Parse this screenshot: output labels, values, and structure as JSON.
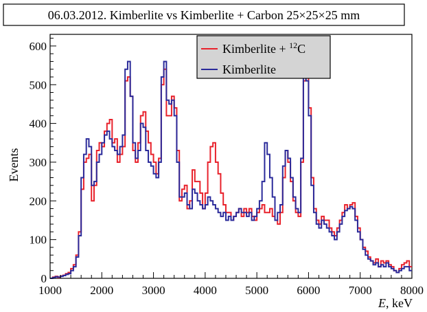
{
  "chart_data": {
    "type": "line",
    "title": "06.03.2012. Kimberlite vs Kimberlite + Carbon 25×25×25 mm",
    "xlabel_italic": "E",
    "xlabel_unit": ", keV",
    "ylabel": "Events",
    "xlim": [
      1000,
      8000
    ],
    "ylim": [
      0,
      630
    ],
    "x_ticks": [
      1000,
      2000,
      3000,
      4000,
      5000,
      6000,
      7000,
      8000
    ],
    "y_ticks": [
      0,
      100,
      200,
      300,
      400,
      500,
      600
    ],
    "grid": false,
    "legend_position": "top-center",
    "bin_width": 50,
    "x": [
      1025,
      1075,
      1125,
      1175,
      1225,
      1275,
      1325,
      1375,
      1425,
      1475,
      1525,
      1575,
      1625,
      1675,
      1725,
      1775,
      1825,
      1875,
      1925,
      1975,
      2025,
      2075,
      2125,
      2175,
      2225,
      2275,
      2325,
      2375,
      2425,
      2475,
      2525,
      2575,
      2625,
      2675,
      2725,
      2775,
      2825,
      2875,
      2925,
      2975,
      3025,
      3075,
      3125,
      3175,
      3225,
      3275,
      3325,
      3375,
      3425,
      3475,
      3525,
      3575,
      3625,
      3675,
      3725,
      3775,
      3825,
      3875,
      3925,
      3975,
      4025,
      4075,
      4125,
      4175,
      4225,
      4275,
      4325,
      4375,
      4425,
      4475,
      4525,
      4575,
      4625,
      4675,
      4725,
      4775,
      4825,
      4875,
      4925,
      4975,
      5025,
      5075,
      5125,
      5175,
      5225,
      5275,
      5325,
      5375,
      5425,
      5475,
      5525,
      5575,
      5625,
      5675,
      5725,
      5775,
      5825,
      5875,
      5925,
      5975,
      6025,
      6075,
      6125,
      6175,
      6225,
      6275,
      6325,
      6375,
      6425,
      6475,
      6525,
      6575,
      6625,
      6675,
      6725,
      6775,
      6825,
      6875,
      6925,
      6975,
      7025,
      7075,
      7125,
      7175,
      7225,
      7275,
      7325,
      7375,
      7425,
      7475,
      7525,
      7575,
      7625,
      7675,
      7725,
      7775,
      7825,
      7875,
      7925,
      7975
    ],
    "series": [
      {
        "name": "Kimberlite + ¹²C",
        "legend_main": "Kimberlite + ",
        "legend_sup": "12",
        "legend_tail": "C",
        "color": "#e8212b",
        "values": [
          0,
          3,
          5,
          2,
          6,
          8,
          12,
          15,
          25,
          35,
          60,
          120,
          230,
          300,
          310,
          320,
          200,
          240,
          330,
          350,
          340,
          380,
          400,
          410,
          350,
          360,
          300,
          320,
          340,
          510,
          520,
          470,
          330,
          300,
          350,
          420,
          430,
          380,
          350,
          320,
          300,
          270,
          310,
          500,
          540,
          420,
          420,
          470,
          440,
          330,
          200,
          230,
          240,
          180,
          200,
          280,
          250,
          250,
          220,
          180,
          220,
          300,
          340,
          350,
          300,
          270,
          220,
          190,
          170,
          170,
          150,
          160,
          170,
          180,
          160,
          180,
          170,
          180,
          160,
          150,
          170,
          180,
          190,
          170,
          170,
          180,
          160,
          150,
          140,
          170,
          260,
          330,
          300,
          250,
          200,
          170,
          160,
          300,
          510,
          520,
          440,
          260,
          180,
          150,
          140,
          160,
          150,
          150,
          130,
          120,
          110,
          130,
          150,
          170,
          190,
          180,
          190,
          195,
          160,
          130,
          100,
          80,
          70,
          55,
          45,
          40,
          50,
          30,
          45,
          40,
          45,
          35,
          30,
          20,
          15,
          25,
          35,
          40,
          45,
          30
        ]
      },
      {
        "name": "Kimberlite",
        "legend_main": "Kimberlite",
        "legend_sup": "",
        "legend_tail": "",
        "color": "#2a2a9a",
        "values": [
          0,
          2,
          4,
          3,
          5,
          7,
          10,
          12,
          20,
          30,
          55,
          110,
          260,
          320,
          360,
          340,
          240,
          250,
          300,
          320,
          350,
          370,
          380,
          360,
          340,
          330,
          320,
          340,
          370,
          540,
          560,
          470,
          350,
          310,
          330,
          400,
          390,
          330,
          300,
          290,
          270,
          260,
          300,
          520,
          560,
          460,
          450,
          460,
          420,
          300,
          210,
          210,
          220,
          190,
          180,
          230,
          220,
          200,
          190,
          180,
          190,
          210,
          200,
          190,
          180,
          170,
          160,
          170,
          150,
          160,
          150,
          160,
          170,
          180,
          170,
          170,
          160,
          170,
          150,
          160,
          180,
          200,
          250,
          350,
          320,
          260,
          210,
          150,
          170,
          190,
          290,
          330,
          310,
          260,
          210,
          180,
          170,
          310,
          540,
          510,
          420,
          240,
          170,
          140,
          130,
          150,
          140,
          130,
          120,
          110,
          100,
          120,
          140,
          160,
          175,
          180,
          185,
          180,
          150,
          120,
          100,
          75,
          60,
          50,
          45,
          35,
          40,
          30,
          35,
          30,
          40,
          30,
          25,
          20,
          15,
          20,
          25,
          30,
          30,
          20
        ]
      }
    ]
  }
}
